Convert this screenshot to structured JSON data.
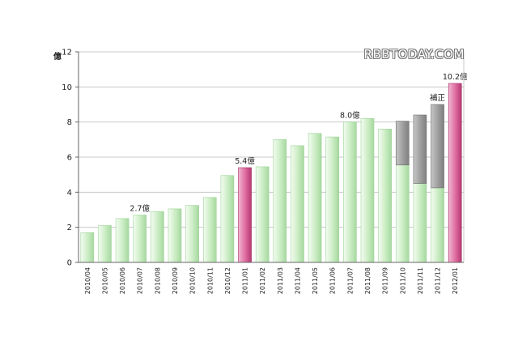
{
  "watermark": "RBBTODAY.COM",
  "chart_data": {
    "type": "bar",
    "title": "",
    "xlabel": "",
    "ylabel": "億",
    "ylim": [
      0,
      12
    ],
    "yticks": [
      0,
      2,
      4,
      6,
      8,
      10,
      12
    ],
    "grid": true,
    "categories": [
      "2010/04",
      "2010/05",
      "2010/06",
      "2010/07",
      "2010/08",
      "2010/09",
      "2010/10",
      "2010/11",
      "2010/12",
      "2011/01",
      "2011/02",
      "2011/03",
      "2011/04",
      "2011/05",
      "2011/06",
      "2011/07",
      "2011/08",
      "2011/09",
      "2011/10",
      "2011/11",
      "2011/12",
      "2012/01"
    ],
    "series": [
      {
        "values": [
          1.7,
          2.1,
          2.5,
          2.7,
          2.9,
          3.05,
          3.25,
          3.7,
          4.95,
          5.4,
          5.45,
          7.0,
          6.65,
          7.35,
          7.15,
          8.0,
          8.2,
          7.6,
          5.55,
          4.5,
          4.25,
          10.2
        ]
      },
      {
        "values": [
          0,
          0,
          0,
          0,
          0,
          0,
          0,
          0,
          0,
          0,
          0,
          0,
          0,
          0,
          0,
          0,
          0,
          0,
          2.5,
          3.9,
          4.75,
          0
        ]
      }
    ],
    "highlighted_categories": [
      "2011/01",
      "2012/01"
    ],
    "colors": {
      "bar": "#cdeec7",
      "bar_dark": "#9ed399",
      "highlight": "#e06aa0",
      "highlight_dark": "#a02d63",
      "correction": "#9d9d9d",
      "correction_dark": "#6c6c6c",
      "grid": "#c8c8c8",
      "axis": "#666666"
    },
    "annotations": [
      {
        "category": "2010/07",
        "text": "2.7億"
      },
      {
        "category": "2011/01",
        "text": "5.4億"
      },
      {
        "category": "2011/07",
        "text": "8.0億"
      },
      {
        "category": "2011/12",
        "text": "補正"
      },
      {
        "category": "2012/01",
        "text": "10.2億"
      }
    ]
  }
}
